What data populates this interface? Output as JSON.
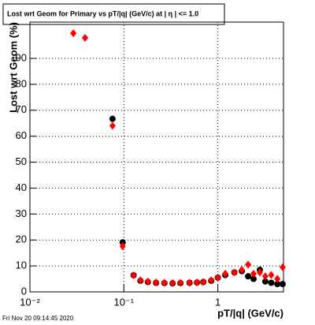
{
  "chart_data": {
    "type": "scatter",
    "title": "Lost wrt Geom for Primary vs pT/|q| (GeV/c) at |  η | <= 1.0",
    "x_label": "pT/|q| (GeV/c)",
    "y_label": "Lost wrt Geom (%)",
    "footer": "Fri Nov 20 09:14:45 2020",
    "x": [
      0.029,
      0.0386,
      0.0757,
      0.097,
      0.127,
      0.15,
      0.18,
      0.22,
      0.27,
      0.33,
      0.4,
      0.5,
      0.6,
      0.7,
      0.85,
      1.0,
      1.2,
      1.5,
      1.8,
      2.1,
      2.4,
      2.8,
      3.2,
      3.7,
      4.3,
      4.9
    ],
    "series": [
      {
        "color": "#000000",
        "values": [
          null,
          null,
          66.7,
          19.1,
          6.4,
          4.3,
          3.8,
          3.5,
          3.4,
          3.3,
          3.4,
          3.5,
          3.6,
          3.8,
          4.3,
          5.5,
          6.5,
          7.5,
          8,
          6,
          5,
          8.5,
          4,
          3.5,
          3,
          3
        ]
      },
      {
        "color": "#ff0000",
        "values": [
          99.7,
          97.9,
          64,
          17.6,
          6.4,
          4.5,
          4,
          3.6,
          3.5,
          3.4,
          3.5,
          3.5,
          3.6,
          3.8,
          4.5,
          5.5,
          7,
          7.5,
          8.5,
          10.5,
          7,
          7.5,
          6,
          6.5,
          5,
          9.5
        ]
      }
    ],
    "xlim": [
      0.01,
      5
    ],
    "log_x": true,
    "xticks": [
      {
        "value": 0.01,
        "label": "10⁻²"
      },
      {
        "value": 0.1,
        "label": "10⁻¹"
      },
      1
    ],
    "ylim": [
      0,
      104
    ],
    "yticks": [
      0,
      10,
      20,
      30,
      40,
      50,
      60,
      70,
      80,
      90
    ],
    "grid": true
  }
}
